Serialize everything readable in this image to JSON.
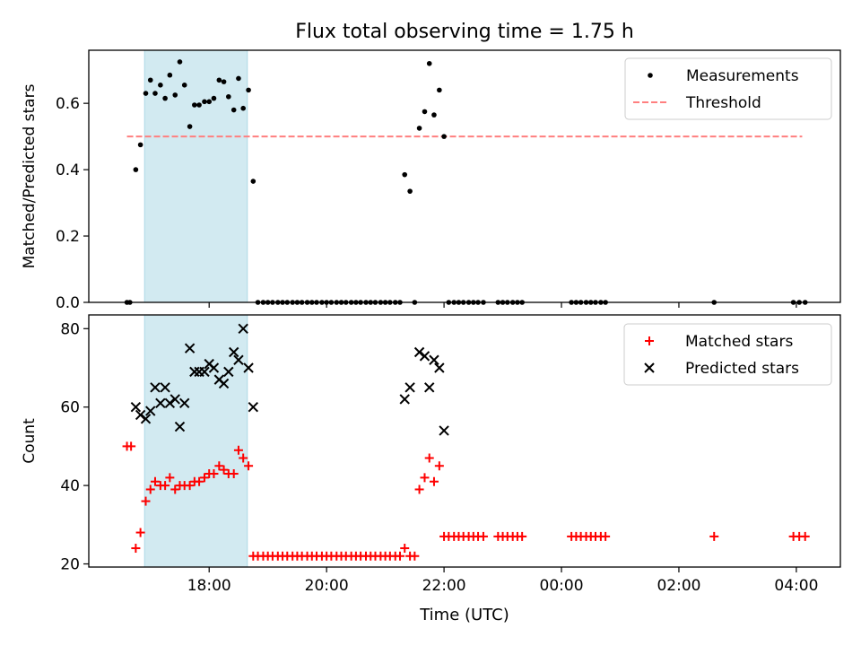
{
  "figure": {
    "title": "Flux total observing time = 1.75 h",
    "xlabel": "Time (UTC)",
    "x_tick_labels": [
      "18:00",
      "20:00",
      "22:00",
      "00:00",
      "02:00",
      "04:00"
    ]
  },
  "colors": {
    "shade": "#add8e6",
    "threshold": "#ff7f7f",
    "matched": "#ff0000",
    "predicted": "#000000",
    "measurement": "#000000"
  },
  "chart_data": [
    {
      "type": "scatter",
      "title": "Flux total observing time = 1.75 h",
      "xlabel": "",
      "ylabel": "Matched/Predicted stars",
      "x_unit": "hours UTC (values > 24 are after midnight)",
      "xlim": [
        15.95,
        28.75
      ],
      "ylim": [
        0.0,
        0.76
      ],
      "yticks": [
        0.0,
        0.2,
        0.4,
        0.6
      ],
      "ytick_labels": [
        "0.0",
        "0.2",
        "0.4",
        "0.6"
      ],
      "legend": {
        "position": "top-right",
        "entries": [
          "Measurements",
          "Threshold"
        ]
      },
      "shaded_span": [
        16.9,
        18.65
      ],
      "threshold": {
        "name": "Threshold",
        "value": 0.5,
        "x_range": [
          16.6,
          28.1
        ],
        "style": "dashed"
      },
      "series": [
        {
          "name": "Measurements",
          "points": [
            [
              16.6,
              0.0
            ],
            [
              16.65,
              0.0
            ],
            [
              16.75,
              0.4
            ],
            [
              16.83,
              0.475
            ],
            [
              16.92,
              0.63
            ],
            [
              17.0,
              0.67
            ],
            [
              17.08,
              0.63
            ],
            [
              17.17,
              0.655
            ],
            [
              17.25,
              0.615
            ],
            [
              17.33,
              0.685
            ],
            [
              17.42,
              0.625
            ],
            [
              17.5,
              0.725
            ],
            [
              17.58,
              0.655
            ],
            [
              17.67,
              0.53
            ],
            [
              17.75,
              0.595
            ],
            [
              17.83,
              0.595
            ],
            [
              17.92,
              0.605
            ],
            [
              18.0,
              0.605
            ],
            [
              18.08,
              0.615
            ],
            [
              18.17,
              0.67
            ],
            [
              18.25,
              0.665
            ],
            [
              18.33,
              0.62
            ],
            [
              18.42,
              0.58
            ],
            [
              18.5,
              0.675
            ],
            [
              18.58,
              0.585
            ],
            [
              18.67,
              0.64
            ],
            [
              18.75,
              0.365
            ],
            [
              18.83,
              0.0
            ],
            [
              18.92,
              0.0
            ],
            [
              19.0,
              0.0
            ],
            [
              19.08,
              0.0
            ],
            [
              19.17,
              0.0
            ],
            [
              19.25,
              0.0
            ],
            [
              19.33,
              0.0
            ],
            [
              19.42,
              0.0
            ],
            [
              19.5,
              0.0
            ],
            [
              19.58,
              0.0
            ],
            [
              19.67,
              0.0
            ],
            [
              19.75,
              0.0
            ],
            [
              19.83,
              0.0
            ],
            [
              19.92,
              0.0
            ],
            [
              20.0,
              0.0
            ],
            [
              20.08,
              0.0
            ],
            [
              20.17,
              0.0
            ],
            [
              20.25,
              0.0
            ],
            [
              20.33,
              0.0
            ],
            [
              20.42,
              0.0
            ],
            [
              20.5,
              0.0
            ],
            [
              20.58,
              0.0
            ],
            [
              20.67,
              0.0
            ],
            [
              20.75,
              0.0
            ],
            [
              20.83,
              0.0
            ],
            [
              20.92,
              0.0
            ],
            [
              21.0,
              0.0
            ],
            [
              21.08,
              0.0
            ],
            [
              21.17,
              0.0
            ],
            [
              21.25,
              0.0
            ],
            [
              21.33,
              0.385
            ],
            [
              21.42,
              0.335
            ],
            [
              21.5,
              0.0
            ],
            [
              21.58,
              0.525
            ],
            [
              21.67,
              0.575
            ],
            [
              21.75,
              0.72
            ],
            [
              21.83,
              0.565
            ],
            [
              21.92,
              0.64
            ],
            [
              22.0,
              0.5
            ],
            [
              22.08,
              0.0
            ],
            [
              22.17,
              0.0
            ],
            [
              22.25,
              0.0
            ],
            [
              22.33,
              0.0
            ],
            [
              22.42,
              0.0
            ],
            [
              22.5,
              0.0
            ],
            [
              22.58,
              0.0
            ],
            [
              22.67,
              0.0
            ],
            [
              22.92,
              0.0
            ],
            [
              23.0,
              0.0
            ],
            [
              23.08,
              0.0
            ],
            [
              23.17,
              0.0
            ],
            [
              23.25,
              0.0
            ],
            [
              23.33,
              0.0
            ],
            [
              24.17,
              0.0
            ],
            [
              24.25,
              0.0
            ],
            [
              24.33,
              0.0
            ],
            [
              24.42,
              0.0
            ],
            [
              24.5,
              0.0
            ],
            [
              24.58,
              0.0
            ],
            [
              24.67,
              0.0
            ],
            [
              24.75,
              0.0
            ],
            [
              26.6,
              0.0
            ],
            [
              27.95,
              0.0
            ],
            [
              28.05,
              0.0
            ],
            [
              28.15,
              0.0
            ]
          ]
        }
      ]
    },
    {
      "type": "scatter",
      "title": "",
      "xlabel": "Time (UTC)",
      "ylabel": "Count",
      "x_unit": "hours UTC (values > 24 are after midnight)",
      "xlim": [
        15.95,
        28.75
      ],
      "ylim": [
        19.2,
        83.5
      ],
      "yticks": [
        20,
        40,
        60,
        80
      ],
      "ytick_labels": [
        "20",
        "40",
        "60",
        "80"
      ],
      "legend": {
        "position": "top-right",
        "entries": [
          "Matched stars",
          "Predicted stars"
        ]
      },
      "shaded_span": [
        16.9,
        18.65
      ],
      "series": [
        {
          "name": "Matched stars",
          "marker": "plus",
          "points": [
            [
              16.6,
              50
            ],
            [
              16.67,
              50
            ],
            [
              16.75,
              24
            ],
            [
              16.83,
              28
            ],
            [
              16.92,
              36
            ],
            [
              17.0,
              39
            ],
            [
              17.08,
              41
            ],
            [
              17.17,
              40
            ],
            [
              17.25,
              40
            ],
            [
              17.33,
              42
            ],
            [
              17.42,
              39
            ],
            [
              17.5,
              40
            ],
            [
              17.58,
              40
            ],
            [
              17.67,
              40
            ],
            [
              17.75,
              41
            ],
            [
              17.83,
              41
            ],
            [
              17.92,
              42
            ],
            [
              18.0,
              43
            ],
            [
              18.08,
              43
            ],
            [
              18.17,
              45
            ],
            [
              18.25,
              44
            ],
            [
              18.33,
              43
            ],
            [
              18.42,
              43
            ],
            [
              18.5,
              49
            ],
            [
              18.58,
              47
            ],
            [
              18.67,
              45
            ],
            [
              18.75,
              22
            ],
            [
              18.83,
              22
            ],
            [
              18.92,
              22
            ],
            [
              19.0,
              22
            ],
            [
              19.08,
              22
            ],
            [
              19.17,
              22
            ],
            [
              19.25,
              22
            ],
            [
              19.33,
              22
            ],
            [
              19.42,
              22
            ],
            [
              19.5,
              22
            ],
            [
              19.58,
              22
            ],
            [
              19.67,
              22
            ],
            [
              19.75,
              22
            ],
            [
              19.83,
              22
            ],
            [
              19.92,
              22
            ],
            [
              20.0,
              22
            ],
            [
              20.08,
              22
            ],
            [
              20.17,
              22
            ],
            [
              20.25,
              22
            ],
            [
              20.33,
              22
            ],
            [
              20.42,
              22
            ],
            [
              20.5,
              22
            ],
            [
              20.58,
              22
            ],
            [
              20.67,
              22
            ],
            [
              20.75,
              22
            ],
            [
              20.83,
              22
            ],
            [
              20.92,
              22
            ],
            [
              21.0,
              22
            ],
            [
              21.08,
              22
            ],
            [
              21.17,
              22
            ],
            [
              21.25,
              22
            ],
            [
              21.33,
              24
            ],
            [
              21.42,
              22
            ],
            [
              21.5,
              22
            ],
            [
              21.58,
              39
            ],
            [
              21.67,
              42
            ],
            [
              21.75,
              47
            ],
            [
              21.83,
              41
            ],
            [
              21.92,
              45
            ],
            [
              22.0,
              27
            ],
            [
              22.08,
              27
            ],
            [
              22.17,
              27
            ],
            [
              22.25,
              27
            ],
            [
              22.33,
              27
            ],
            [
              22.42,
              27
            ],
            [
              22.5,
              27
            ],
            [
              22.58,
              27
            ],
            [
              22.67,
              27
            ],
            [
              22.92,
              27
            ],
            [
              23.0,
              27
            ],
            [
              23.08,
              27
            ],
            [
              23.17,
              27
            ],
            [
              23.25,
              27
            ],
            [
              23.33,
              27
            ],
            [
              24.17,
              27
            ],
            [
              24.25,
              27
            ],
            [
              24.33,
              27
            ],
            [
              24.42,
              27
            ],
            [
              24.5,
              27
            ],
            [
              24.58,
              27
            ],
            [
              24.67,
              27
            ],
            [
              24.75,
              27
            ],
            [
              26.6,
              27
            ],
            [
              27.95,
              27
            ],
            [
              28.05,
              27
            ],
            [
              28.15,
              27
            ]
          ]
        },
        {
          "name": "Predicted stars",
          "marker": "x",
          "points": [
            [
              16.75,
              60
            ],
            [
              16.83,
              58
            ],
            [
              16.92,
              57
            ],
            [
              17.0,
              59
            ],
            [
              17.08,
              65
            ],
            [
              17.17,
              61
            ],
            [
              17.25,
              65
            ],
            [
              17.33,
              61
            ],
            [
              17.42,
              62
            ],
            [
              17.5,
              55
            ],
            [
              17.58,
              61
            ],
            [
              17.67,
              75
            ],
            [
              17.75,
              69
            ],
            [
              17.83,
              69
            ],
            [
              17.92,
              69
            ],
            [
              18.0,
              71
            ],
            [
              18.08,
              70
            ],
            [
              18.17,
              67
            ],
            [
              18.25,
              66
            ],
            [
              18.33,
              69
            ],
            [
              18.42,
              74
            ],
            [
              18.5,
              72
            ],
            [
              18.58,
              80
            ],
            [
              18.67,
              70
            ],
            [
              18.75,
              60
            ],
            [
              21.33,
              62
            ],
            [
              21.42,
              65
            ],
            [
              21.58,
              74
            ],
            [
              21.67,
              73
            ],
            [
              21.75,
              65
            ],
            [
              21.83,
              72
            ],
            [
              21.92,
              70
            ],
            [
              22.0,
              54
            ]
          ]
        }
      ]
    }
  ]
}
